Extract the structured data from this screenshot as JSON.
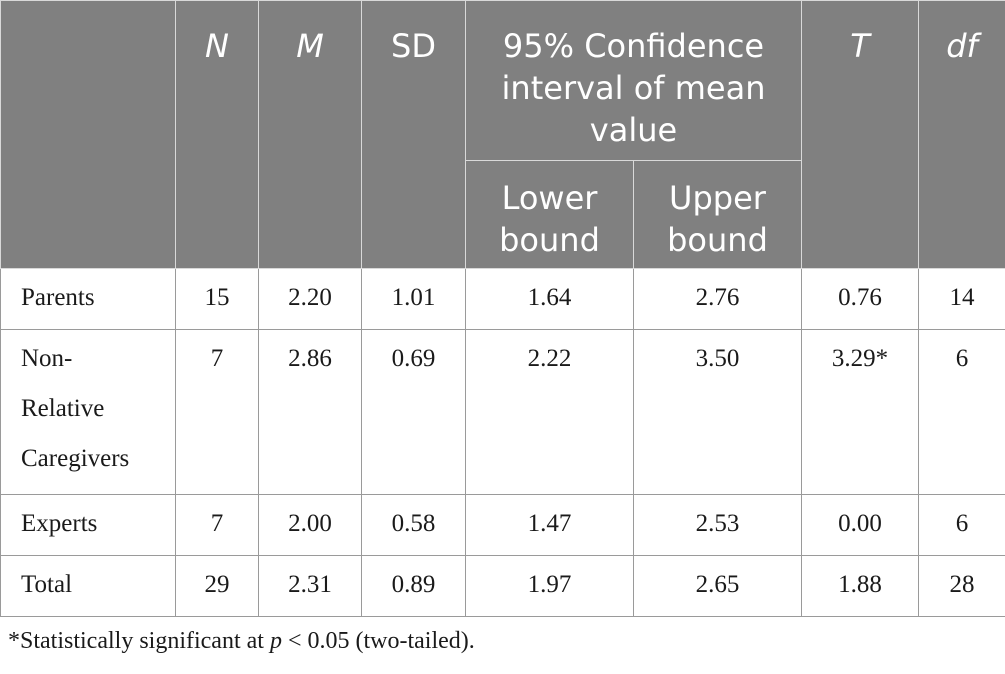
{
  "header": {
    "N": "N",
    "M": "M",
    "SD": "SD",
    "ci": "95% Confidence interval of mean value",
    "lower": "Lower bound",
    "upper": "Upper bound",
    "T": "T",
    "df": "df"
  },
  "rows": [
    {
      "group": "Parents",
      "N": "15",
      "M": "2.20",
      "SD": "1.01",
      "lower": "1.64",
      "upper": "2.76",
      "T": "0.76",
      "df": "14"
    },
    {
      "group": "Non-Relative Caregivers",
      "N": "7",
      "M": "2.86",
      "SD": "0.69",
      "lower": "2.22",
      "upper": "3.50",
      "T": "3.29*",
      "df": "6"
    },
    {
      "group": "Experts",
      "N": "7",
      "M": "2.00",
      "SD": "0.58",
      "lower": "1.47",
      "upper": "2.53",
      "T": "0.00",
      "df": "6"
    },
    {
      "group": "Total",
      "N": "29",
      "M": "2.31",
      "SD": "0.89",
      "lower": "1.97",
      "upper": "2.65",
      "T": "1.88",
      "df": "28"
    }
  ],
  "footnote": {
    "prefix": "*Statistically significant at ",
    "p": "p",
    "suffix": " < 0.05 (two-tailed)."
  }
}
